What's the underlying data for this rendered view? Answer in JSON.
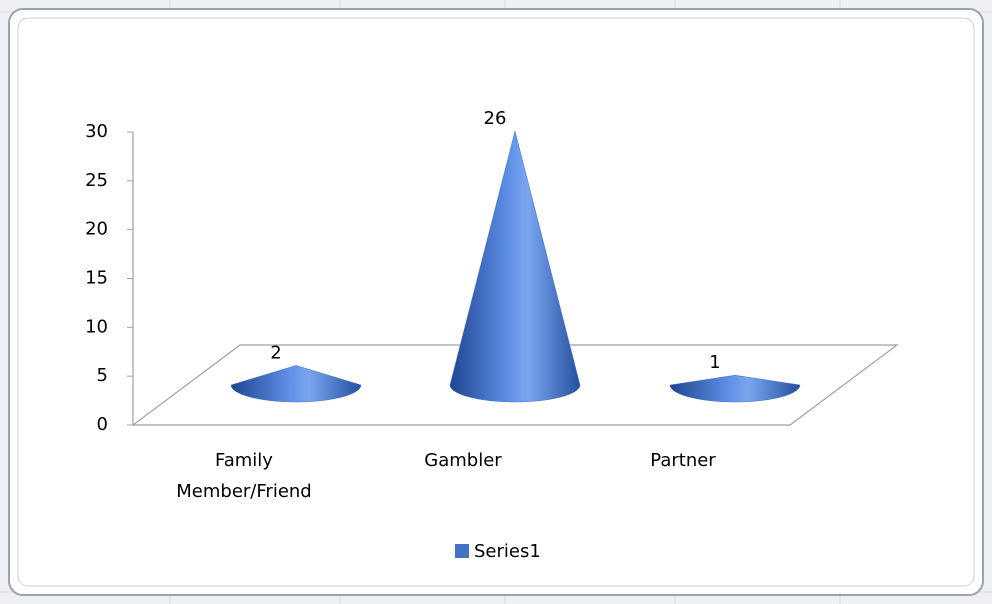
{
  "chart_data": {
    "type": "cone",
    "categories": [
      "Family Member/Friend",
      "Gambler",
      "Partner"
    ],
    "series": [
      {
        "name": "Series1",
        "color": "#4472c4",
        "values": [
          2,
          26,
          1
        ]
      }
    ],
    "ylim": [
      0,
      30
    ],
    "yticks": [
      0,
      5,
      10,
      15,
      20,
      25,
      30
    ],
    "grid": false,
    "legend": "bottom"
  }
}
